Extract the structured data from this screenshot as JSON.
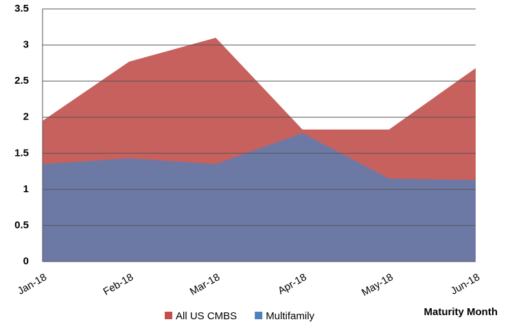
{
  "chart_data": {
    "type": "area",
    "categories": [
      "Jan-18",
      "Feb-18",
      "Mar-18",
      "Apr-18",
      "May-18",
      "Jun-18"
    ],
    "series": [
      {
        "name": "All US CMBS",
        "color": "#c0504d",
        "values": [
          1.95,
          2.77,
          3.1,
          1.83,
          1.83,
          2.68
        ]
      },
      {
        "name": "Multifamily",
        "color": "#4f81bd",
        "values": [
          1.35,
          1.43,
          1.35,
          1.78,
          1.15,
          1.13
        ]
      }
    ],
    "x_label": "Maturity Month",
    "ylim": [
      0,
      3.5
    ],
    "yticks": [
      0,
      0.5,
      1,
      1.5,
      2,
      2.5,
      3,
      3.5
    ],
    "grid": true,
    "legend": "bottom"
  }
}
